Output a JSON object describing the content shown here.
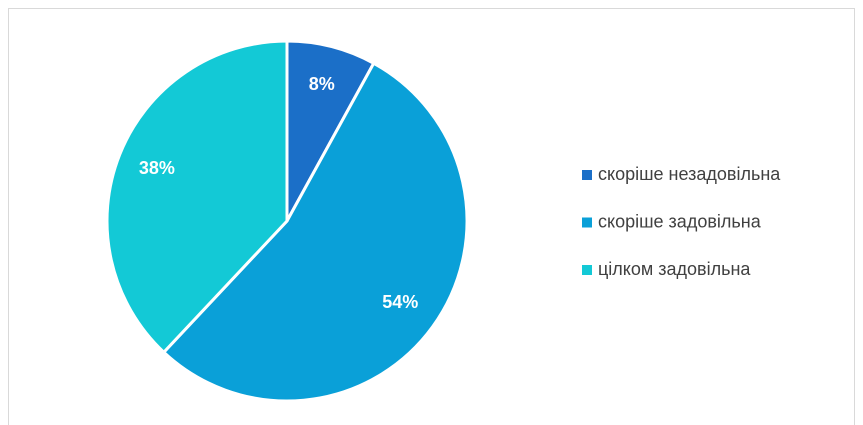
{
  "chart_data": {
    "type": "pie",
    "categories": [
      "скоріше незадовільна",
      "скоріше задовільна",
      "цілком задовільна"
    ],
    "values": [
      8,
      54,
      38
    ],
    "value_labels": [
      "8%",
      "54%",
      "38%"
    ],
    "colors": [
      "#1b6fc8",
      "#0aa0d8",
      "#13c9d6"
    ],
    "legend": "right"
  }
}
